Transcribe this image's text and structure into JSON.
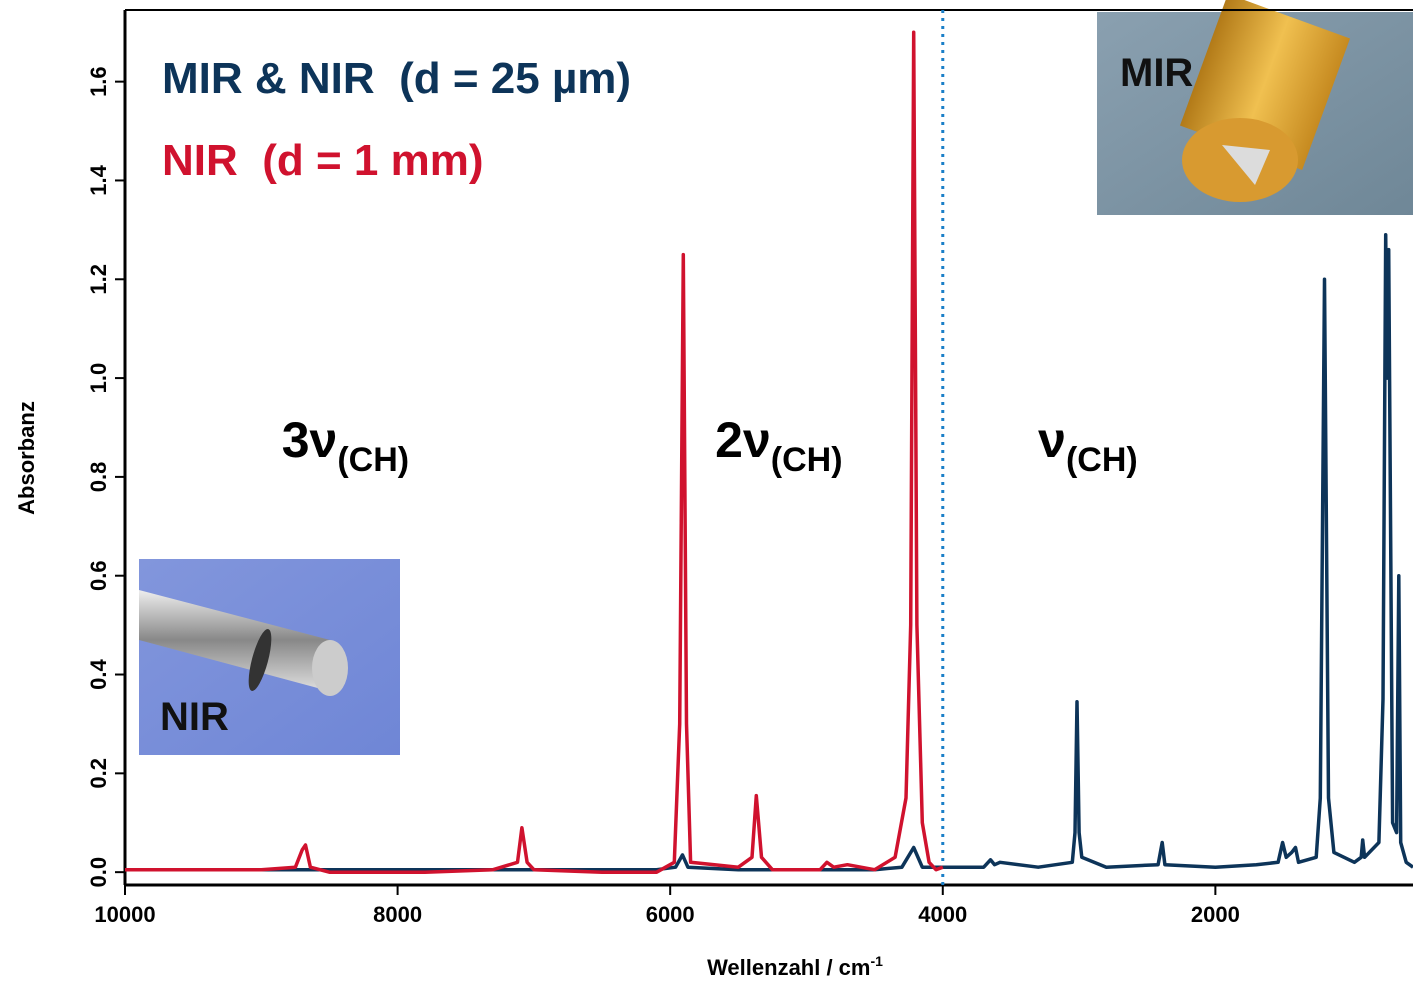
{
  "chart_data": {
    "type": "line",
    "x_label": {
      "text": "Wellenzahl / cm",
      "sup": "-1"
    },
    "y_label": "Absorbanz",
    "xlim": [
      10000,
      550
    ],
    "ylim": [
      -0.026,
      1.745
    ],
    "xticks": [
      10000,
      8000,
      6000,
      4000,
      2000
    ],
    "yticks": [
      {
        "value": 0,
        "label": "0.0"
      },
      0.2,
      0.4,
      0.6,
      0.8,
      {
        "value": 1,
        "label": "1.0"
      },
      1.2,
      1.4,
      1.6
    ],
    "series": [
      {
        "name": "MIR & NIR  (d = 25 µm)",
        "color": "#0d3459",
        "x": [
          10000,
          9000,
          8000,
          7000,
          6100,
          5960,
          5910,
          5870,
          5500,
          4500,
          4300,
          4213,
          4150,
          4000,
          3700,
          3650,
          3620,
          3580,
          3300,
          3050,
          3030,
          3015,
          3000,
          2980,
          2800,
          2420,
          2390,
          2370,
          2000,
          1700,
          1540,
          1507,
          1480,
          1440,
          1412,
          1390,
          1260,
          1230,
          1199,
          1170,
          1130,
          980,
          930,
          919,
          905,
          800,
          770,
          750,
          740,
          728,
          700,
          670,
          654,
          640,
          600,
          550
        ],
        "values": [
          0.005,
          0.005,
          0.005,
          0.005,
          0.005,
          0.01,
          0.035,
          0.01,
          0.005,
          0.005,
          0.01,
          0.05,
          0.01,
          0.01,
          0.01,
          0.025,
          0.015,
          0.02,
          0.01,
          0.02,
          0.08,
          0.345,
          0.08,
          0.03,
          0.01,
          0.015,
          0.06,
          0.015,
          0.01,
          0.015,
          0.02,
          0.06,
          0.03,
          0.04,
          0.05,
          0.02,
          0.03,
          0.15,
          1.2,
          0.15,
          0.04,
          0.02,
          0.03,
          0.065,
          0.03,
          0.06,
          0.35,
          1.29,
          1.0,
          1.26,
          0.1,
          0.08,
          0.6,
          0.06,
          0.02,
          0.01
        ]
      },
      {
        "name": "NIR  (d = 1 mm)",
        "color": "#d0122e",
        "x": [
          10000,
          9000,
          8750,
          8700,
          8676,
          8640,
          8500,
          8200,
          7800,
          7300,
          7120,
          7088,
          7050,
          7000,
          6500,
          6100,
          5970,
          5930,
          5904,
          5880,
          5850,
          5500,
          5400,
          5368,
          5330,
          5250,
          4900,
          4850,
          4800,
          4700,
          4500,
          4350,
          4270,
          4235,
          4213,
          4190,
          4150,
          4100,
          4050,
          4000
        ],
        "values": [
          0.005,
          0.005,
          0.01,
          0.045,
          0.055,
          0.01,
          0,
          0,
          0,
          0.005,
          0.02,
          0.09,
          0.02,
          0.005,
          0,
          0,
          0.02,
          0.3,
          1.25,
          0.3,
          0.02,
          0.01,
          0.03,
          0.155,
          0.03,
          0.005,
          0.005,
          0.02,
          0.01,
          0.015,
          0.005,
          0.03,
          0.15,
          0.5,
          1.7,
          0.5,
          0.1,
          0.02,
          0.005,
          0.01
        ]
      }
    ],
    "vline": {
      "x": 4000,
      "color": "#1a7fc8"
    },
    "annotations": [
      {
        "main": "3ν",
        "sub": "(CH)",
        "x": 8850,
        "y": 0.84
      },
      {
        "main": "2ν",
        "sub": "(CH)",
        "x": 5670,
        "y": 0.84
      },
      {
        "main": "ν",
        "sub": "(CH)",
        "x": 3300,
        "y": 0.84
      }
    ],
    "photos": [
      {
        "label": "MIR"
      },
      {
        "label": "NIR"
      }
    ]
  }
}
